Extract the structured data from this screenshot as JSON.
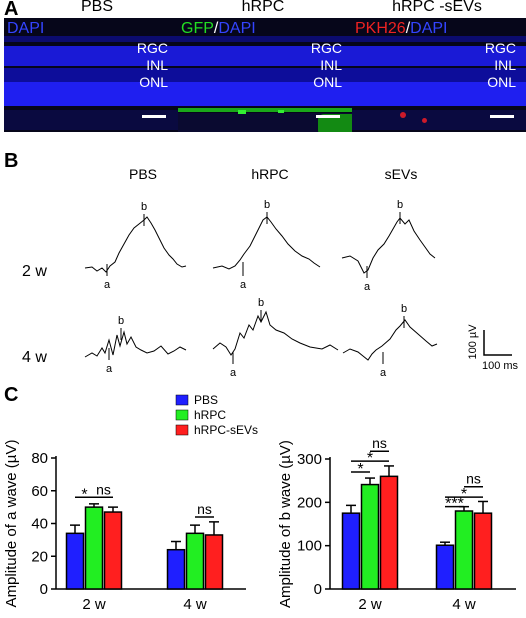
{
  "panels": {
    "a": "A",
    "b": "B",
    "c": "C"
  },
  "micrographs": [
    {
      "title": "PBS",
      "stain": [
        {
          "text": "DAPI",
          "color": "#3344ff"
        }
      ]
    },
    {
      "title": "hRPC",
      "stain": [
        {
          "text": "GFP",
          "color": "#22dd22"
        },
        {
          "text": "/",
          "color": "#ffffff"
        },
        {
          "text": "DAPI",
          "color": "#3344ff"
        }
      ]
    },
    {
      "title": "hRPC -sEVs",
      "stain": [
        {
          "text": "PKH26",
          "color": "#ee2222"
        },
        {
          "text": "/",
          "color": "#ffffff"
        },
        {
          "text": "DAPI",
          "color": "#3344ff"
        }
      ]
    }
  ],
  "layers": [
    "RGC",
    "INL",
    "ONL"
  ],
  "erg": {
    "columns": [
      "PBS",
      "hRPC",
      "sEVs"
    ],
    "rows": [
      "2 w",
      "4 w"
    ],
    "peak_a": "a",
    "peak_b": "b",
    "scale_y": "100 µV",
    "scale_x": "100 ms"
  },
  "legend": [
    {
      "name": "PBS",
      "color": "#1f1fff"
    },
    {
      "name": "hRPC",
      "color": "#22ee22"
    },
    {
      "name": "hRPC-sEVs",
      "color": "#ff1f1f"
    }
  ],
  "chart_data": [
    {
      "type": "bar",
      "ylabel": "Amplitude of a wave (µV)",
      "categories": [
        "2 w",
        "4 w"
      ],
      "ylim": [
        0,
        80
      ],
      "yticks": [
        0,
        20,
        40,
        60,
        80
      ],
      "series": [
        {
          "name": "PBS",
          "values": [
            34,
            24
          ],
          "errors": [
            5,
            5
          ]
        },
        {
          "name": "hRPC",
          "values": [
            50,
            34
          ],
          "errors": [
            2,
            5
          ]
        },
        {
          "name": "hRPC-sEVs",
          "values": [
            47,
            33
          ],
          "errors": [
            3,
            8
          ]
        }
      ],
      "annotations": [
        {
          "text": "*",
          "group": 0,
          "from": 0,
          "to": 1,
          "y": 56
        },
        {
          "text": "ns",
          "group": 0,
          "from": 1,
          "to": 2,
          "y": 56
        },
        {
          "text": "ns",
          "group": 1,
          "from": 1,
          "to": 2,
          "y": 44
        }
      ]
    },
    {
      "type": "bar",
      "ylabel": "Amplitude of b wave (µV)",
      "categories": [
        "2 w",
        "4 w"
      ],
      "ylim": [
        0,
        300
      ],
      "yticks": [
        0,
        100,
        200,
        300
      ],
      "series": [
        {
          "name": "PBS",
          "values": [
            175,
            101
          ],
          "errors": [
            18,
            7
          ]
        },
        {
          "name": "hRPC",
          "values": [
            241,
            180
          ],
          "errors": [
            15,
            10
          ]
        },
        {
          "name": "hRPC-sEVs",
          "values": [
            260,
            175
          ],
          "errors": [
            24,
            27
          ]
        }
      ],
      "annotations": [
        {
          "text": "*",
          "group": 0,
          "from": 0,
          "to": 1,
          "y": 270
        },
        {
          "text": "*",
          "group": 0,
          "from": 0,
          "to": 2,
          "y": 295
        },
        {
          "text": "ns",
          "group": 0,
          "from": 1,
          "to": 2,
          "y": 318
        },
        {
          "text": "***",
          "group": 1,
          "from": 0,
          "to": 1,
          "y": 190
        },
        {
          "text": "*",
          "group": 1,
          "from": 0,
          "to": 2,
          "y": 212
        },
        {
          "text": "ns",
          "group": 1,
          "from": 1,
          "to": 2,
          "y": 236
        }
      ]
    }
  ]
}
